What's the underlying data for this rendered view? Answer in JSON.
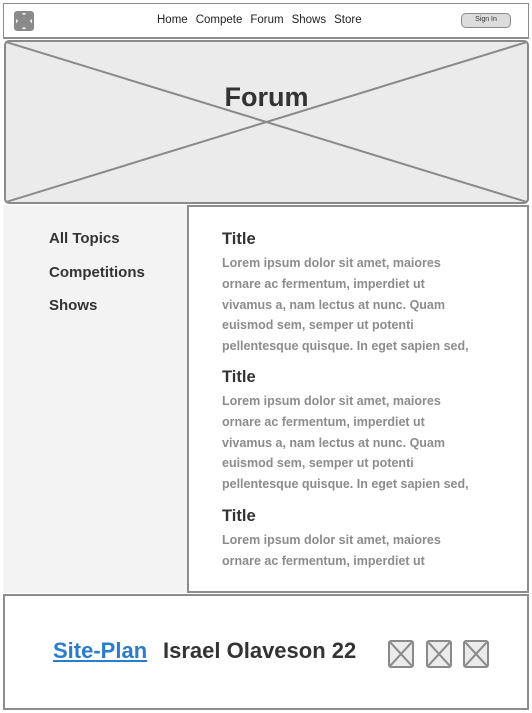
{
  "header": {
    "logo_icon": "placeholder-image-icon",
    "nav": [
      "Home",
      "Compete",
      "Forum",
      "Shows",
      "Store"
    ],
    "signin_label": "Sign In"
  },
  "hero": {
    "title": "Forum",
    "image_icon": "placeholder-image-icon"
  },
  "sidebar": {
    "items": [
      "All Topics",
      "Competitions",
      "Shows"
    ]
  },
  "posts": [
    {
      "title": "Title",
      "lines": [
        "Lorem ipsum dolor sit amet, maiores",
        "ornare ac fermentum, imperdiet ut",
        "vivamus a, nam lectus at nunc. Quam",
        "euismod sem, semper ut potenti",
        "pellentesque quisque. In eget sapien sed,"
      ]
    },
    {
      "title": "Title",
      "lines": [
        "Lorem ipsum dolor sit amet, maiores",
        "ornare ac fermentum, imperdiet ut",
        "vivamus a, nam lectus at nunc. Quam",
        "euismod sem, semper ut potenti",
        "pellentesque quisque. In eget sapien sed,"
      ]
    },
    {
      "title": "Title",
      "lines": [
        "Lorem ipsum dolor sit amet, maiores",
        "ornare ac fermentum, imperdiet ut"
      ]
    }
  ],
  "footer": {
    "link_label": "Site-Plan",
    "name": "Israel Olaveson 22",
    "social_icons": [
      "social-icon-1",
      "social-icon-2",
      "social-icon-3"
    ]
  },
  "colors": {
    "link": "#2a7ccc",
    "placeholder_fill": "#ebebeb",
    "border": "#8d8d8d",
    "sidebar_bg": "#f3f3f3",
    "body_text": "#8c8c8c"
  }
}
